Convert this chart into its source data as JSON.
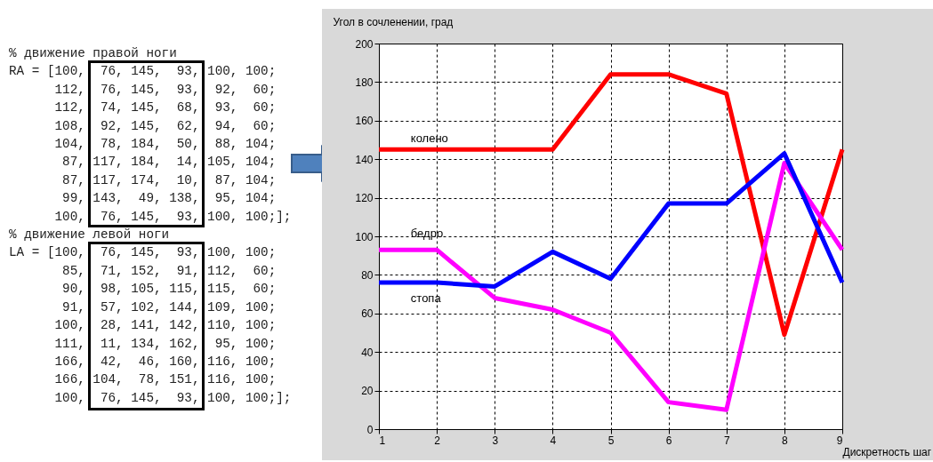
{
  "chart_data": {
    "type": "line",
    "ylabel": "Угол в сочленении, град",
    "xlabel": "Дискретность шаг",
    "x": [
      1,
      2,
      3,
      4,
      5,
      6,
      7,
      8,
      9
    ],
    "series": [
      {
        "name": "колено",
        "color": "#ff0000",
        "values": [
          145,
          145,
          145,
          145,
          184,
          184,
          174,
          49,
          145
        ]
      },
      {
        "name": "бедро",
        "color": "#ff00ff",
        "values": [
          93,
          93,
          68,
          62,
          50,
          14,
          10,
          138,
          93
        ]
      },
      {
        "name": "стопа",
        "color": "#0000ff",
        "values": [
          76,
          76,
          74,
          92,
          78,
          117,
          117,
          143,
          76
        ]
      }
    ],
    "xlim": [
      1,
      9
    ],
    "xticks": [
      1,
      2,
      3,
      4,
      5,
      6,
      7,
      8,
      9
    ],
    "ylim": [
      0,
      200
    ],
    "yticks": [
      0,
      20,
      40,
      60,
      80,
      100,
      120,
      140,
      160,
      180,
      200
    ],
    "grid": true,
    "legend": false,
    "marker": "none",
    "line_style": "solid",
    "annotations": [
      "% движение правой ноги",
      "RA = [100,  76, 145,  93, 100, 100;",
      "      112,  76, 145,  93,  92,  60;",
      "      112,  74, 145,  68,  93,  60;",
      "      108,  92, 145,  62,  94,  60;",
      "      104,  78, 184,  50,  88, 104;",
      "       87, 117, 184,  14, 105, 104;",
      "       87, 117, 174,  10,  87, 104;",
      "       99, 143,  49, 138,  95, 104;",
      "      100,  76, 145,  93, 100, 100;];",
      "% движение левой ноги",
      "LA = [100,  76, 145,  93, 100, 100;",
      "       85,  71, 152,  91, 112,  60;",
      "       90,  98, 105, 115, 115,  60;",
      "       91,  57, 102, 144, 109, 100;",
      "      100,  28, 141, 142, 110, 100;",
      "      111,  11, 134, 162,  95, 100;",
      "      166,  42,  46, 160, 116, 100;",
      "      166, 104,  78, 151, 116, 100;",
      "      100,  76, 145,  93, 100, 100;];"
    ]
  }
}
